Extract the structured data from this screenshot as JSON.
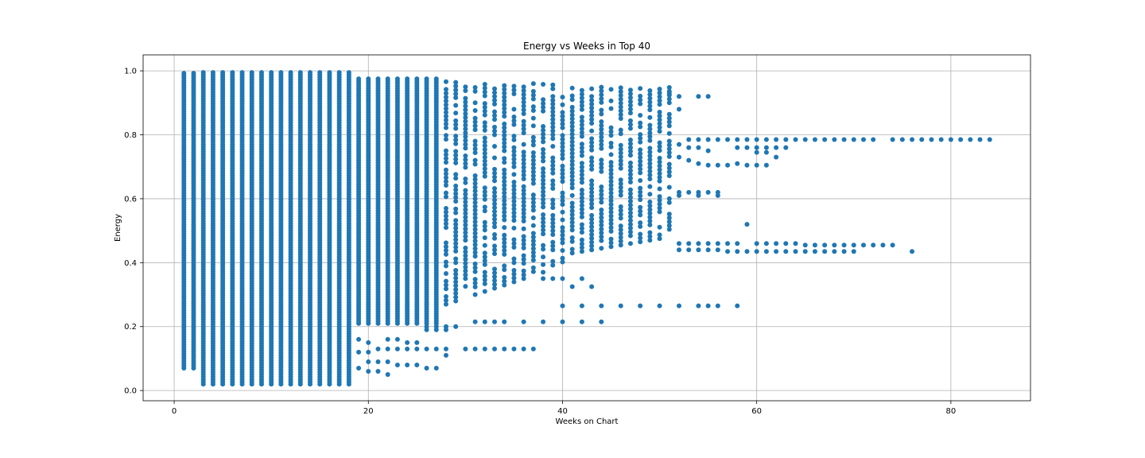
{
  "chart_data": {
    "type": "scatter",
    "title": "Energy vs Weeks in Top 40",
    "xlabel": "Weeks on Chart",
    "ylabel": "Energy",
    "xlim": [
      -3.2,
      88.2
    ],
    "ylim": [
      -0.032,
      1.05
    ],
    "xticks": [
      0,
      20,
      40,
      60,
      80
    ],
    "yticks": [
      0.0,
      0.2,
      0.4,
      0.6,
      0.8,
      1.0
    ],
    "xtick_labels": [
      "0",
      "20",
      "40",
      "60",
      "80"
    ],
    "ytick_labels": [
      "0.0",
      "0.2",
      "0.4",
      "0.6",
      "0.8",
      "1.0"
    ],
    "grid": true,
    "marker_color": "#1f77b4",
    "dense_columns": [
      {
        "x_min": 1,
        "x_max": 18,
        "y_min": 0.02,
        "y_max": 0.995,
        "note_low": {
          "1": 0.07,
          "2": 0.07,
          "3": 0.02
        }
      },
      {
        "x_min": 19,
        "x_max": 27,
        "y_min": 0.21,
        "y_max": 0.98
      }
    ],
    "points": [
      [
        19,
        0.07
      ],
      [
        19,
        0.12
      ],
      [
        19,
        0.16
      ],
      [
        20,
        0.06
      ],
      [
        20,
        0.09
      ],
      [
        20,
        0.12
      ],
      [
        20,
        0.15
      ],
      [
        21,
        0.06
      ],
      [
        21,
        0.09
      ],
      [
        21,
        0.13
      ],
      [
        22,
        0.05
      ],
      [
        22,
        0.09
      ],
      [
        22,
        0.13
      ],
      [
        22,
        0.16
      ],
      [
        23,
        0.08
      ],
      [
        23,
        0.13
      ],
      [
        23,
        0.16
      ],
      [
        24,
        0.08
      ],
      [
        24,
        0.13
      ],
      [
        24,
        0.15
      ],
      [
        25,
        0.08
      ],
      [
        25,
        0.13
      ],
      [
        25,
        0.15
      ],
      [
        26,
        0.07
      ],
      [
        26,
        0.13
      ],
      [
        27,
        0.07
      ],
      [
        27,
        0.13
      ],
      [
        28,
        0.11
      ],
      [
        28,
        0.13
      ],
      [
        30,
        0.13
      ],
      [
        31,
        0.13
      ],
      [
        32,
        0.13
      ],
      [
        33,
        0.13
      ],
      [
        34,
        0.13
      ],
      [
        35,
        0.13
      ],
      [
        36,
        0.13
      ],
      [
        37,
        0.13
      ],
      [
        26,
        0.19
      ],
      [
        26,
        0.2
      ],
      [
        27,
        0.19
      ],
      [
        27,
        0.2
      ],
      [
        28,
        0.19
      ],
      [
        28,
        0.2
      ],
      [
        29,
        0.2
      ],
      [
        31,
        0.215
      ],
      [
        32,
        0.215
      ],
      [
        33,
        0.215
      ],
      [
        34,
        0.215
      ],
      [
        36,
        0.215
      ],
      [
        38,
        0.215
      ],
      [
        40,
        0.215
      ],
      [
        42,
        0.215
      ],
      [
        44,
        0.215
      ],
      [
        40,
        0.265
      ],
      [
        42,
        0.265
      ],
      [
        44,
        0.265
      ],
      [
        46,
        0.265
      ],
      [
        48,
        0.265
      ],
      [
        50,
        0.265
      ],
      [
        52,
        0.265
      ],
      [
        54,
        0.265
      ],
      [
        55,
        0.265
      ],
      [
        56,
        0.265
      ],
      [
        58,
        0.265
      ],
      [
        38,
        0.35
      ],
      [
        39,
        0.35
      ],
      [
        40,
        0.35
      ],
      [
        42,
        0.35
      ],
      [
        43,
        0.325
      ],
      [
        41,
        0.325
      ],
      [
        52,
        0.88
      ],
      [
        54,
        0.92
      ],
      [
        55,
        0.92
      ],
      [
        51,
        0.93
      ],
      [
        52,
        0.92
      ],
      [
        53,
        0.785
      ],
      [
        54,
        0.785
      ],
      [
        55,
        0.785
      ],
      [
        56,
        0.785
      ],
      [
        57,
        0.785
      ],
      [
        58,
        0.785
      ],
      [
        59,
        0.785
      ],
      [
        60,
        0.785
      ],
      [
        61,
        0.785
      ],
      [
        62,
        0.785
      ],
      [
        63,
        0.785
      ],
      [
        64,
        0.785
      ],
      [
        65,
        0.785
      ],
      [
        66,
        0.785
      ],
      [
        67,
        0.785
      ],
      [
        68,
        0.785
      ],
      [
        69,
        0.785
      ],
      [
        70,
        0.785
      ],
      [
        71,
        0.785
      ],
      [
        72,
        0.785
      ],
      [
        74,
        0.785
      ],
      [
        75,
        0.785
      ],
      [
        76,
        0.785
      ],
      [
        77,
        0.785
      ],
      [
        78,
        0.785
      ],
      [
        79,
        0.785
      ],
      [
        80,
        0.785
      ],
      [
        81,
        0.785
      ],
      [
        82,
        0.785
      ],
      [
        83,
        0.785
      ],
      [
        84,
        0.785
      ],
      [
        52,
        0.77
      ],
      [
        53,
        0.76
      ],
      [
        54,
        0.76
      ],
      [
        55,
        0.75
      ],
      [
        58,
        0.76
      ],
      [
        59,
        0.76
      ],
      [
        60,
        0.76
      ],
      [
        61,
        0.76
      ],
      [
        62,
        0.76
      ],
      [
        63,
        0.76
      ],
      [
        60,
        0.745
      ],
      [
        61,
        0.745
      ],
      [
        62,
        0.73
      ],
      [
        52,
        0.73
      ],
      [
        53,
        0.72
      ],
      [
        54,
        0.71
      ],
      [
        55,
        0.705
      ],
      [
        56,
        0.705
      ],
      [
        57,
        0.705
      ],
      [
        58,
        0.71
      ],
      [
        59,
        0.705
      ],
      [
        60,
        0.705
      ],
      [
        61,
        0.705
      ],
      [
        52,
        0.62
      ],
      [
        53,
        0.62
      ],
      [
        54,
        0.62
      ],
      [
        55,
        0.62
      ],
      [
        56,
        0.62
      ],
      [
        52,
        0.61
      ],
      [
        54,
        0.61
      ],
      [
        56,
        0.61
      ],
      [
        59,
        0.52
      ],
      [
        52,
        0.46
      ],
      [
        53,
        0.46
      ],
      [
        54,
        0.46
      ],
      [
        55,
        0.46
      ],
      [
        56,
        0.46
      ],
      [
        57,
        0.46
      ],
      [
        58,
        0.46
      ],
      [
        60,
        0.46
      ],
      [
        61,
        0.46
      ],
      [
        62,
        0.46
      ],
      [
        63,
        0.46
      ],
      [
        64,
        0.46
      ],
      [
        65,
        0.455
      ],
      [
        66,
        0.455
      ],
      [
        67,
        0.455
      ],
      [
        68,
        0.455
      ],
      [
        69,
        0.455
      ],
      [
        70,
        0.455
      ],
      [
        71,
        0.455
      ],
      [
        72,
        0.455
      ],
      [
        73,
        0.455
      ],
      [
        74,
        0.455
      ],
      [
        52,
        0.44
      ],
      [
        53,
        0.44
      ],
      [
        54,
        0.44
      ],
      [
        55,
        0.44
      ],
      [
        56,
        0.44
      ],
      [
        57,
        0.435
      ],
      [
        58,
        0.435
      ],
      [
        59,
        0.435
      ],
      [
        60,
        0.435
      ],
      [
        61,
        0.435
      ],
      [
        62,
        0.435
      ],
      [
        63,
        0.435
      ],
      [
        64,
        0.435
      ],
      [
        65,
        0.435
      ],
      [
        66,
        0.435
      ],
      [
        67,
        0.435
      ],
      [
        68,
        0.435
      ],
      [
        69,
        0.435
      ],
      [
        70,
        0.435
      ],
      [
        76,
        0.435
      ]
    ]
  }
}
